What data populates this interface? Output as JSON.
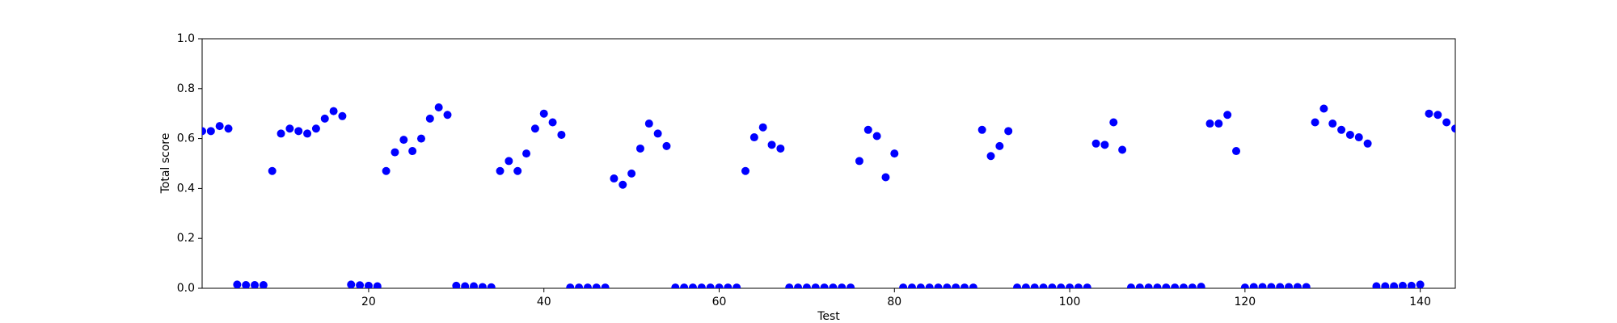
{
  "chart_data": {
    "type": "scatter",
    "xlabel": "Test",
    "ylabel": "Total score",
    "color": "#0000ff",
    "xlim": [
      1,
      144
    ],
    "ylim": [
      0,
      1
    ],
    "xticks": [
      20,
      40,
      60,
      80,
      100,
      120,
      140
    ],
    "yticks": [
      {
        "value": 0,
        "label": "0.0"
      },
      0.2,
      0.4,
      0.6,
      0.8,
      {
        "value": 1,
        "label": "1.0"
      }
    ],
    "x": [
      1,
      2,
      3,
      4,
      5,
      6,
      7,
      8,
      9,
      10,
      11,
      12,
      13,
      14,
      15,
      16,
      17,
      18,
      19,
      20,
      21,
      22,
      23,
      24,
      25,
      26,
      27,
      28,
      29,
      30,
      31,
      32,
      33,
      34,
      35,
      36,
      37,
      38,
      39,
      40,
      41,
      42,
      43,
      44,
      45,
      46,
      47,
      48,
      49,
      50,
      51,
      52,
      53,
      54,
      55,
      56,
      57,
      58,
      59,
      60,
      61,
      62,
      63,
      64,
      65,
      66,
      67,
      68,
      69,
      70,
      71,
      72,
      73,
      74,
      75,
      76,
      77,
      78,
      79,
      80,
      81,
      82,
      83,
      84,
      85,
      86,
      87,
      88,
      89,
      90,
      91,
      92,
      93,
      94,
      95,
      96,
      97,
      98,
      99,
      100,
      101,
      102,
      103,
      104,
      105,
      106,
      107,
      108,
      109,
      110,
      111,
      112,
      113,
      114,
      115,
      116,
      117,
      118,
      119,
      120,
      121,
      122,
      123,
      124,
      125,
      126,
      127,
      128,
      129,
      130,
      131,
      132,
      133,
      134,
      135,
      136,
      137,
      138,
      139,
      140,
      141,
      142,
      143,
      144
    ],
    "values": [
      0.63,
      0.63,
      0.65,
      0.64,
      0.015,
      0.013,
      0.013,
      0.013,
      0.47,
      0.62,
      0.64,
      0.63,
      0.62,
      0.64,
      0.68,
      0.71,
      0.69,
      0.015,
      0.012,
      0.01,
      0.008,
      0.47,
      0.545,
      0.595,
      0.55,
      0.6,
      0.68,
      0.725,
      0.695,
      0.01,
      0.008,
      0.008,
      0.005,
      0.004,
      0.47,
      0.51,
      0.47,
      0.54,
      0.64,
      0.7,
      0.665,
      0.615,
      0.003,
      0.003,
      0.003,
      0.003,
      0.003,
      0.44,
      0.415,
      0.46,
      0.56,
      0.66,
      0.62,
      0.57,
      0.003,
      0.003,
      0.003,
      0.003,
      0.003,
      0.003,
      0.003,
      0.003,
      0.47,
      0.605,
      0.645,
      0.575,
      0.56,
      0.003,
      0.003,
      0.003,
      0.003,
      0.003,
      0.003,
      0.003,
      0.003,
      0.51,
      0.635,
      0.61,
      0.445,
      0.54,
      0.003,
      0.003,
      0.003,
      0.003,
      0.003,
      0.003,
      0.003,
      0.003,
      0.003,
      0.635,
      0.53,
      0.57,
      0.63,
      0.003,
      0.003,
      0.003,
      0.003,
      0.003,
      0.003,
      0.003,
      0.003,
      0.003,
      0.58,
      0.575,
      0.665,
      0.555,
      0.003,
      0.003,
      0.003,
      0.003,
      0.003,
      0.003,
      0.003,
      0.003,
      0.006,
      0.66,
      0.66,
      0.695,
      0.55,
      0.003,
      0.005,
      0.005,
      0.005,
      0.005,
      0.005,
      0.005,
      0.005,
      0.665,
      0.72,
      0.66,
      0.635,
      0.615,
      0.605,
      0.58,
      0.008,
      0.008,
      0.008,
      0.01,
      0.01,
      0.015,
      0.7,
      0.695,
      0.665,
      0.64
    ]
  }
}
